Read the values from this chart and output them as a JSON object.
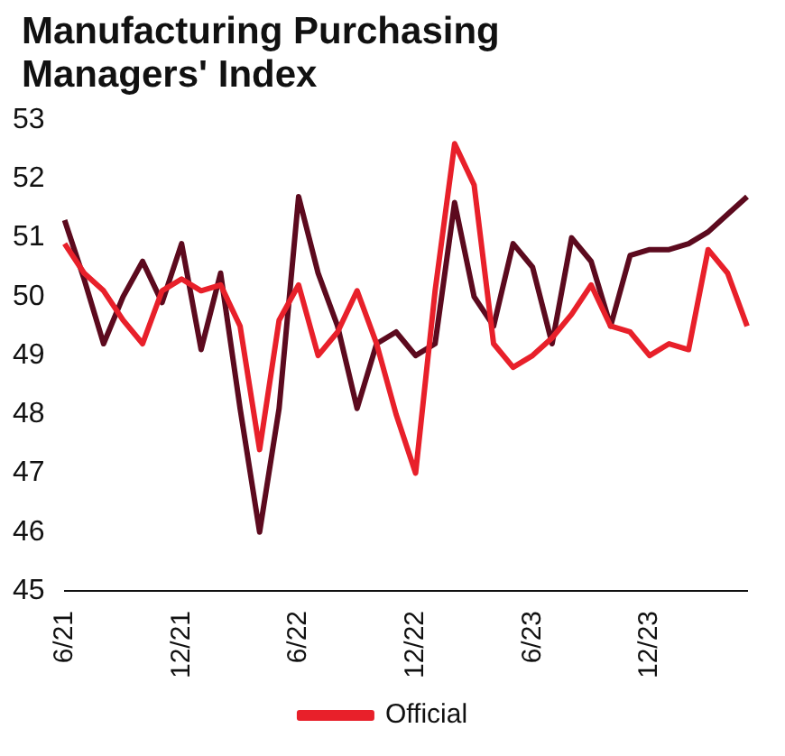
{
  "chart_data": {
    "type": "line",
    "title": "Manufacturing Purchasing Managers' Index",
    "categories": [
      "6/21",
      null,
      null,
      null,
      null,
      null,
      "12/21",
      null,
      null,
      null,
      null,
      null,
      "6/22",
      null,
      null,
      null,
      null,
      null,
      "12/22",
      null,
      null,
      null,
      null,
      null,
      "6/23",
      null,
      null,
      null,
      null,
      null,
      "12/23",
      null,
      null,
      null,
      null,
      null
    ],
    "series": [
      {
        "name": "Official",
        "color": "#e8202a",
        "values": [
          50.9,
          50.4,
          50.1,
          49.6,
          49.2,
          50.1,
          50.3,
          50.1,
          50.2,
          49.5,
          47.4,
          49.6,
          50.2,
          49.0,
          49.4,
          50.1,
          49.2,
          48.0,
          47.0,
          50.1,
          52.6,
          51.9,
          49.2,
          48.8,
          49.0,
          49.3,
          49.7,
          50.2,
          49.5,
          49.4,
          49.0,
          49.2,
          49.1,
          50.8,
          50.4,
          49.5
        ]
      },
      {
        "color": "#5c0a1e",
        "values": [
          51.3,
          50.3,
          49.2,
          50.0,
          50.6,
          49.9,
          50.9,
          49.1,
          50.4,
          48.1,
          46.0,
          48.1,
          51.7,
          50.4,
          49.5,
          48.1,
          49.2,
          49.4,
          49.0,
          49.2,
          51.6,
          50.0,
          49.5,
          50.9,
          50.5,
          49.2,
          51.0,
          50.6,
          49.5,
          50.7,
          50.8,
          50.8,
          50.9,
          51.1,
          51.4,
          51.7
        ]
      }
    ],
    "ylim": [
      45,
      53
    ],
    "yticks": [
      45,
      46,
      47,
      48,
      49,
      50,
      51,
      52,
      53
    ],
    "grid": false,
    "legend": "bottom",
    "marker": "none",
    "line_style": "solid"
  }
}
